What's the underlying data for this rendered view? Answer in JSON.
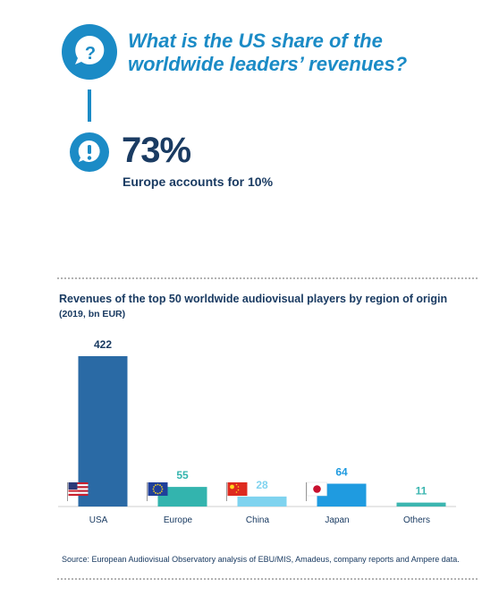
{
  "question": {
    "line1": "What is the US share of the",
    "line2": "worldwide leaders’ revenues?",
    "icon": "question-bubble-icon"
  },
  "answer": {
    "value": "73%",
    "note": "Europe accounts for 10%",
    "icon": "exclamation-bubble-icon"
  },
  "colors": {
    "question_blue": "#1b8bc6",
    "navy": "#1a3b62"
  },
  "chart_data": {
    "type": "bar",
    "title": "Revenues of the top 50 worldwide audiovisual players by region of origin",
    "subtitle": "(2019, bn EUR)",
    "categories": [
      "USA",
      "Europe",
      "China",
      "Japan",
      "Others"
    ],
    "values": [
      422,
      55,
      28,
      64,
      11
    ],
    "value_labels": [
      "422",
      "55",
      "28",
      "64",
      "11"
    ],
    "colors": [
      "#2a6aa5",
      "#33b4ae",
      "#7fd3ef",
      "#1f9be0",
      "#3cb6b0"
    ],
    "flags": [
      "us-flag-icon",
      "eu-flag-icon",
      "china-flag-icon",
      "japan-flag-icon",
      ""
    ],
    "ylim": [
      0,
      422
    ],
    "grid": false,
    "legend": "none",
    "xlabel": "",
    "ylabel": ""
  },
  "source": "Source: European Audiovisual Observatory analysis of EBU/MIS, Amadeus, company reports and Ampere data."
}
